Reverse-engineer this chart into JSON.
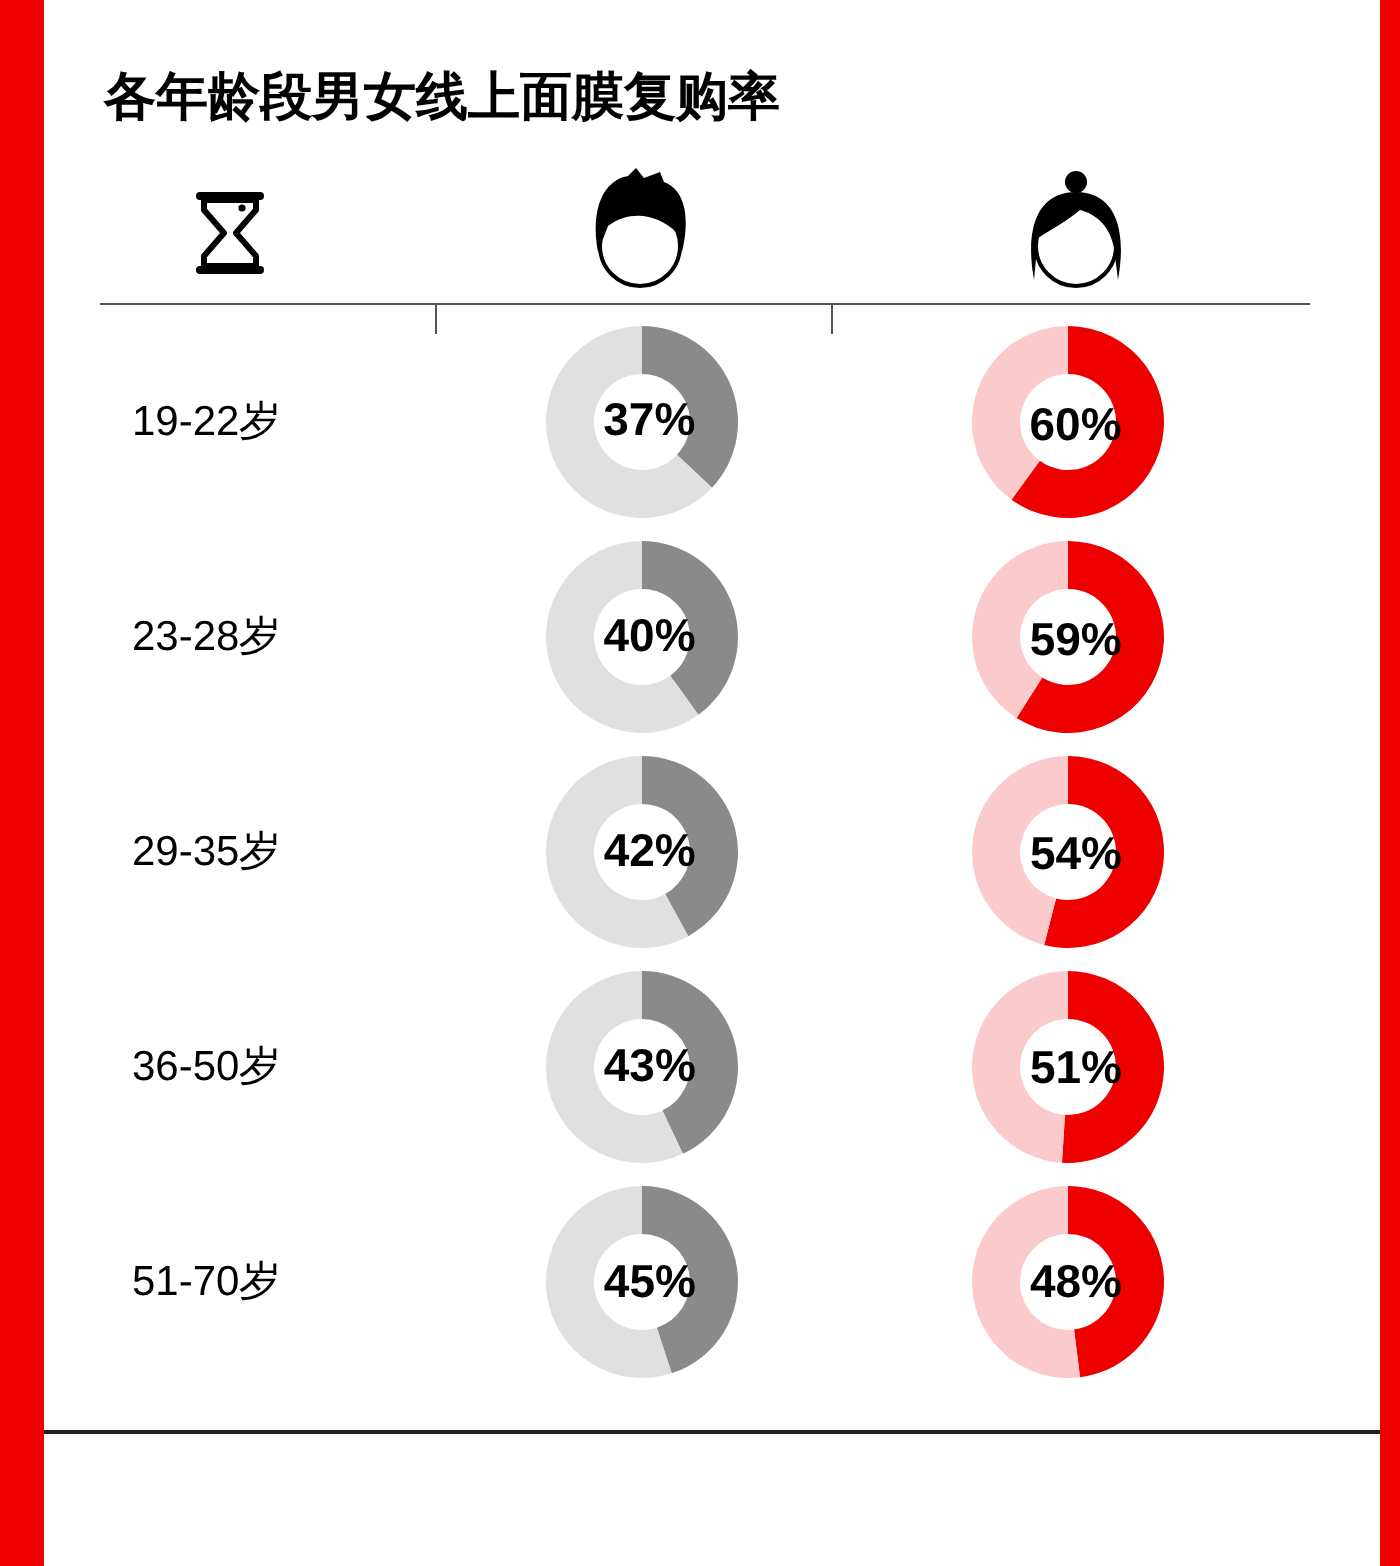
{
  "chart_data": [
    {
      "type": "other",
      "title": "各年龄段男女线上面膜复购率"
    },
    {
      "type": "donut",
      "ylabel": "19-22岁",
      "categories": [
        null,
        null
      ],
      "values": [
        37,
        63
      ],
      "colors": [
        "#8a8a8a",
        "#e0e0e0"
      ],
      "value_labels": [
        "37%",
        null
      ]
    },
    {
      "type": "donut",
      "categories": [
        null,
        null
      ],
      "values": [
        60,
        40
      ],
      "colors": [
        "#ee0000",
        "#fbcaca"
      ],
      "value_labels": [
        "60%",
        null
      ]
    },
    {
      "type": "donut",
      "ylabel": "23-28岁",
      "categories": [
        null,
        null
      ],
      "values": [
        40,
        60
      ],
      "colors": [
        "#8a8a8a",
        "#e0e0e0"
      ],
      "value_labels": [
        "40%",
        null
      ]
    },
    {
      "type": "donut",
      "categories": [
        null,
        null
      ],
      "values": [
        59,
        41
      ],
      "colors": [
        "#ee0000",
        "#fbcaca"
      ],
      "value_labels": [
        "59%",
        null
      ]
    },
    {
      "type": "donut",
      "ylabel": "29-35岁",
      "categories": [
        null,
        null
      ],
      "values": [
        42,
        58
      ],
      "colors": [
        "#8a8a8a",
        "#e0e0e0"
      ],
      "value_labels": [
        "42%",
        null
      ]
    },
    {
      "type": "donut",
      "categories": [
        null,
        null
      ],
      "values": [
        54,
        46
      ],
      "colors": [
        "#ee0000",
        "#fbcaca"
      ],
      "value_labels": [
        "54%",
        null
      ]
    },
    {
      "type": "donut",
      "ylabel": "36-50岁",
      "categories": [
        null,
        null
      ],
      "values": [
        43,
        57
      ],
      "colors": [
        "#8a8a8a",
        "#e0e0e0"
      ],
      "value_labels": [
        "43%",
        null
      ]
    },
    {
      "type": "donut",
      "categories": [
        null,
        null
      ],
      "values": [
        51,
        49
      ],
      "colors": [
        "#ee0000",
        "#fbcaca"
      ],
      "value_labels": [
        "51%",
        null
      ]
    },
    {
      "type": "donut",
      "ylabel": "51-70岁",
      "categories": [
        null,
        null
      ],
      "values": [
        45,
        55
      ],
      "colors": [
        "#8a8a8a",
        "#e0e0e0"
      ],
      "value_labels": [
        "45%",
        null
      ]
    },
    {
      "type": "donut",
      "categories": [
        null,
        null
      ],
      "values": [
        48,
        52
      ],
      "colors": [
        "#ee0000",
        "#fbcaca"
      ],
      "value_labels": [
        "48%",
        null
      ]
    }
  ]
}
